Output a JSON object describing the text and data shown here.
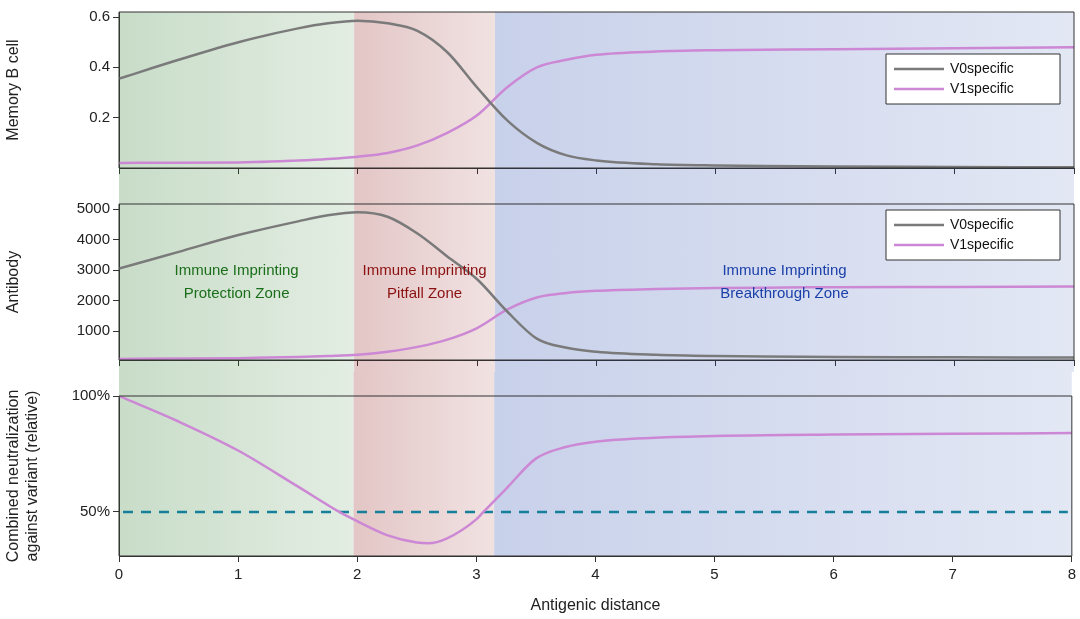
{
  "chart_data": [
    {
      "type": "line",
      "ylabel": "Memory B cell",
      "x": [
        0,
        0.5,
        1,
        1.5,
        1.75,
        2,
        2.25,
        2.5,
        2.75,
        3,
        3.25,
        3.5,
        3.75,
        4,
        4.5,
        5,
        6,
        7,
        8
      ],
      "series": [
        {
          "name": "V0specific",
          "color": "#7a7a7a",
          "values": [
            0.355,
            0.43,
            0.5,
            0.555,
            0.575,
            0.585,
            0.575,
            0.545,
            0.46,
            0.32,
            0.19,
            0.1,
            0.05,
            0.03,
            0.015,
            0.01,
            0.006,
            0.004,
            0.003
          ]
        },
        {
          "name": "V1specific",
          "color": "#cc88d4",
          "values": [
            0.02,
            0.021,
            0.022,
            0.03,
            0.036,
            0.045,
            0.06,
            0.09,
            0.14,
            0.21,
            0.32,
            0.4,
            0.43,
            0.45,
            0.463,
            0.468,
            0.472,
            0.476,
            0.48
          ]
        }
      ],
      "xlim": [
        0,
        8
      ],
      "xticks": [
        0,
        1,
        2,
        3,
        4,
        5,
        6,
        7,
        8
      ],
      "ylim": [
        0,
        0.62
      ],
      "yticks": [
        0.2,
        0.4,
        0.6
      ],
      "tick_labels": "y",
      "grid": false,
      "legend": "top right",
      "marker": "none",
      "line_style": "solid",
      "bands": [
        {
          "axis": "x",
          "from": 0,
          "to": 1.97,
          "color": "#1a6e1a"
        },
        {
          "axis": "x",
          "from": 1.97,
          "to": 3.15,
          "color": "#8b1010"
        },
        {
          "axis": "x",
          "from": 3.15,
          "to": 8,
          "color": "#1a3fa8"
        }
      ]
    },
    {
      "type": "line",
      "ylabel": "Antibody",
      "x": [
        0,
        0.5,
        1,
        1.5,
        1.75,
        2,
        2.25,
        2.5,
        2.75,
        3,
        3.25,
        3.5,
        3.75,
        4,
        4.5,
        5,
        6,
        7,
        8
      ],
      "series": [
        {
          "name": "V0specific",
          "color": "#7a7a7a",
          "values": [
            3050,
            3600,
            4150,
            4600,
            4800,
            4900,
            4750,
            4200,
            3450,
            2700,
            1650,
            750,
            450,
            320,
            220,
            180,
            150,
            140,
            130
          ]
        },
        {
          "name": "V1specific",
          "color": "#cc88d4",
          "values": [
            80,
            100,
            110,
            150,
            180,
            220,
            320,
            480,
            720,
            1100,
            1700,
            2100,
            2250,
            2320,
            2380,
            2410,
            2440,
            2450,
            2460
          ]
        }
      ],
      "xlim": [
        0,
        8
      ],
      "xticks": [
        0,
        1,
        2,
        3,
        4,
        5,
        6,
        7,
        8
      ],
      "ylim": [
        50,
        5170
      ],
      "yticks": [
        1000,
        2000,
        3000,
        4000,
        5000
      ],
      "tick_labels": "y",
      "grid": false,
      "legend": "top right",
      "marker": "none",
      "line_style": "solid",
      "bands": [
        {
          "axis": "x",
          "from": 0,
          "to": 1.97,
          "color": "#1a6e1a",
          "label": "Immune Imprinting\nProtection Zone"
        },
        {
          "axis": "x",
          "from": 1.97,
          "to": 3.15,
          "color": "#8b1010",
          "label": "Immune Imprinting\nPitfall Zone"
        },
        {
          "axis": "x",
          "from": 3.15,
          "to": 8,
          "color": "#1a3fa8",
          "label": "Immune Imprinting\nBreakthrough Zone"
        }
      ]
    },
    {
      "type": "line",
      "xlabel": "Antigenic distance",
      "ylabel": "Combined neutralization\nagainst variant (relative)",
      "x": [
        0,
        0.5,
        1,
        1.5,
        1.85,
        2,
        2.25,
        2.5,
        2.6,
        2.75,
        3,
        3.06,
        3.25,
        3.5,
        3.75,
        4,
        4.5,
        5,
        6,
        7,
        8
      ],
      "series": [
        {
          "color": "#cc88d4",
          "values": [
            100,
            89,
            76.5,
            61,
            50,
            46,
            40,
            36.8,
            36.5,
            38.5,
            46.8,
            50,
            60,
            73,
            78,
            80.3,
            82,
            82.8,
            83.4,
            83.7,
            84
          ]
        }
      ],
      "xlim": [
        0,
        8
      ],
      "xticks": [
        0,
        1,
        2,
        3,
        4,
        5,
        6,
        7,
        8
      ],
      "ylim": [
        31,
        100
      ],
      "yticks": [
        {
          "value": 50,
          "label": "50%"
        },
        {
          "value": 100,
          "label": "100%"
        }
      ],
      "grid": false,
      "legend": false,
      "marker": "none",
      "line_style": "solid",
      "ref_lines": [
        {
          "axis": "y",
          "value": 50,
          "color": "#16809a",
          "line_style": "dashed"
        }
      ],
      "bands": [
        {
          "axis": "x",
          "from": 0,
          "to": 1.97,
          "color": "#1a6e1a"
        },
        {
          "axis": "x",
          "from": 1.97,
          "to": 3.15,
          "color": "#8b1010"
        },
        {
          "axis": "x",
          "from": 3.15,
          "to": 8,
          "color": "#1a3fa8"
        }
      ]
    }
  ]
}
